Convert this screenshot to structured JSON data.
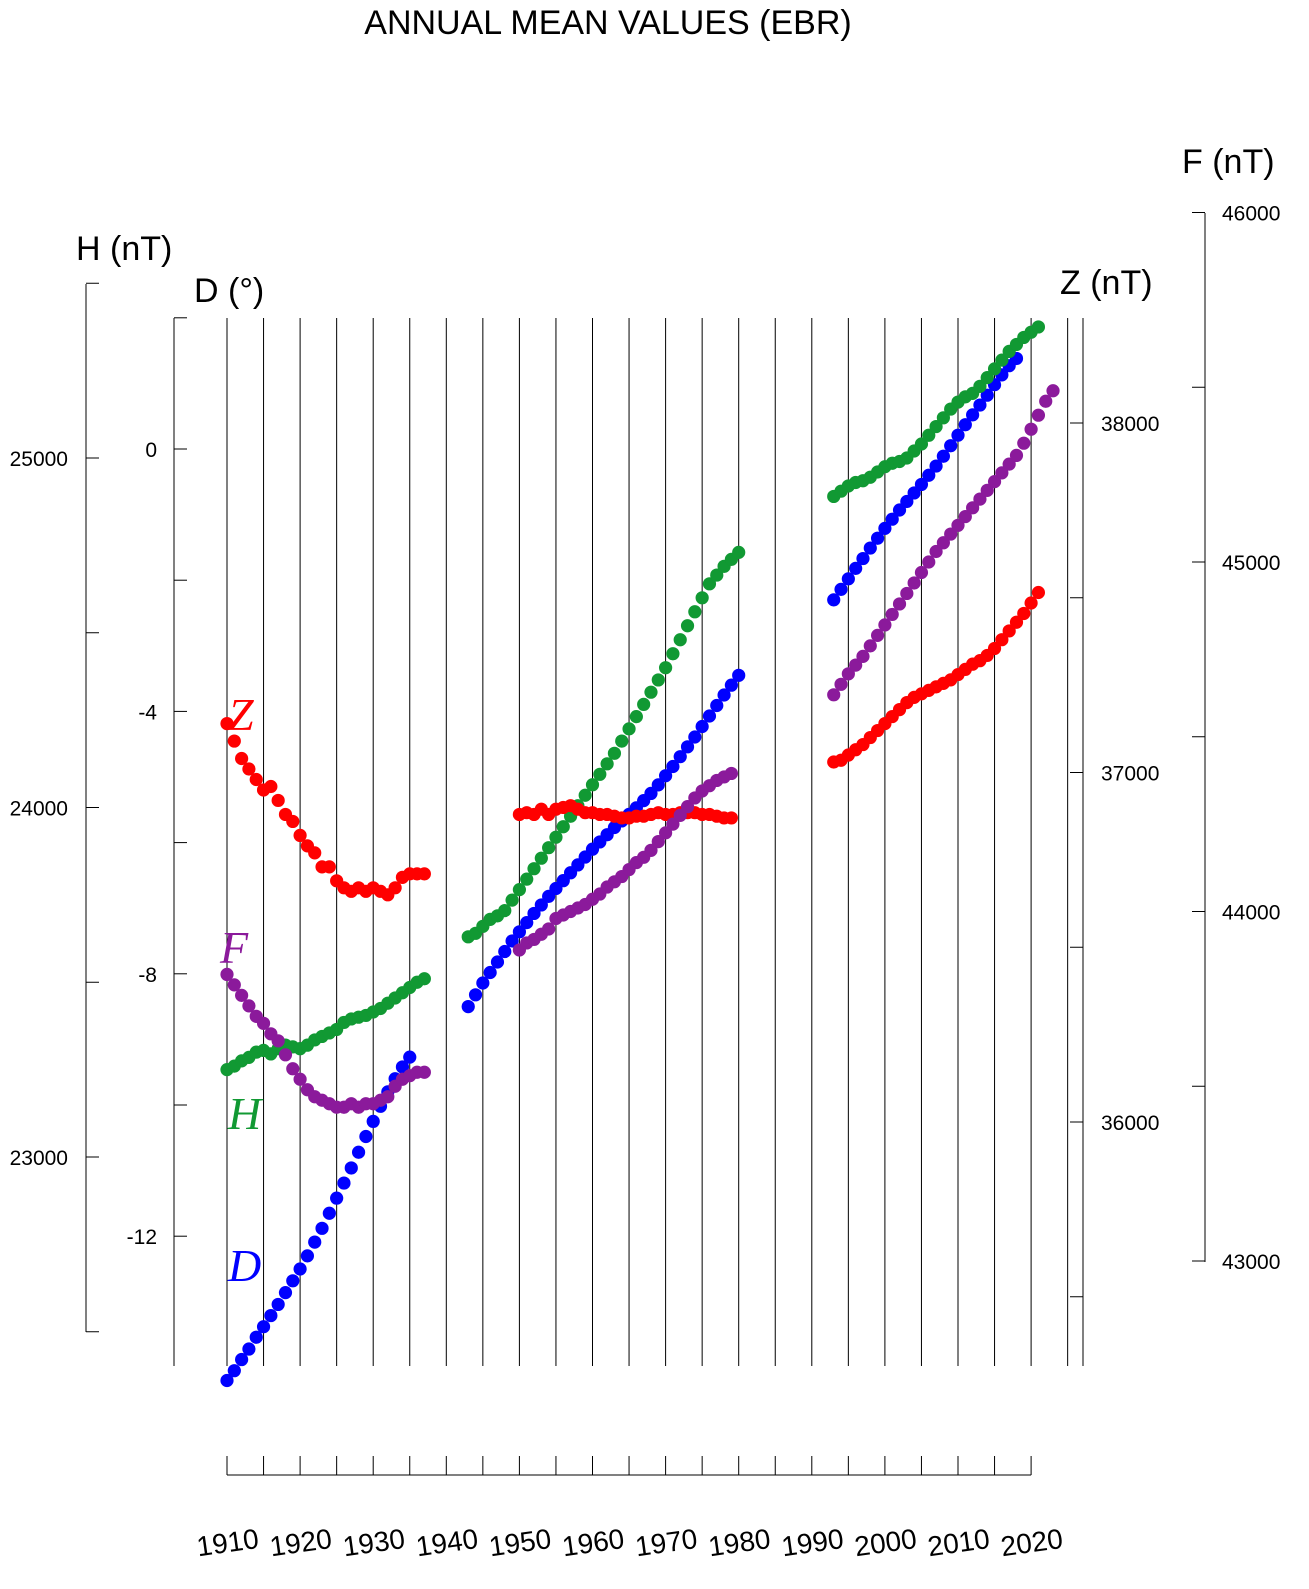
{
  "chart_data": {
    "type": "scatter",
    "title": "ANNUAL MEAN VALUES (EBR)",
    "colors": {
      "D": "#0000ff",
      "H": "#119933",
      "Z": "#ff0000",
      "F": "#8b1a9b"
    },
    "x": {
      "ticks": [
        1910,
        1920,
        1930,
        1940,
        1950,
        1960,
        1970,
        1980,
        1990,
        2000,
        2010,
        2020
      ],
      "range": [
        1910,
        2020
      ]
    },
    "axes": {
      "H": {
        "label": "H (nT)",
        "range": [
          22500,
          25500
        ],
        "major_ticks": [
          23000,
          24000,
          25000
        ],
        "minor_ticks": [
          22500,
          23500,
          24500,
          25500
        ],
        "side": "left-outer"
      },
      "D": {
        "label": "D (°)",
        "range": [
          -14.5,
          2
        ],
        "major_ticks": [
          -12,
          -8,
          -4,
          0
        ],
        "minor_ticks": [
          -14,
          -10,
          -6,
          -2,
          2
        ],
        "side": "left-inner"
      },
      "Z": {
        "label": "Z (nT)",
        "range": [
          35300,
          38300
        ],
        "major_ticks": [
          36000,
          37000,
          38000
        ],
        "minor_ticks": [
          35500,
          36500,
          37500
        ],
        "side": "right-inner"
      },
      "F": {
        "label": "F (nT)",
        "range": [
          43000,
          46000
        ],
        "major_ticks": [
          43000,
          44000,
          45000,
          46000
        ],
        "minor_ticks": [
          43500,
          44500,
          45500
        ],
        "side": "right-outer"
      }
    },
    "series": [
      {
        "name": "D",
        "axis": "D",
        "segments": [
          {
            "x_start": 1910,
            "values": [
              -14.2,
              -14.05,
              -13.88,
              -13.72,
              -13.54,
              -13.38,
              -13.21,
              -13.04,
              -12.86,
              -12.68,
              -12.5,
              -12.3,
              -12.09,
              -11.88,
              -11.65,
              -11.42,
              -11.19,
              -10.96,
              -10.72,
              -10.48,
              -10.25,
              -10.02,
              -9.8,
              -9.6,
              -9.42,
              -9.27
            ]
          },
          {
            "x_start": 1943,
            "values": [
              -8.5,
              -8.32,
              -8.14,
              -7.98,
              -7.82,
              -7.66,
              -7.5,
              -7.36,
              -7.22,
              -7.08,
              -6.95,
              -6.82,
              -6.7,
              -6.58,
              -6.46,
              -6.34,
              -6.22,
              -6.1,
              -5.99,
              -5.88,
              -5.77,
              -5.67,
              -5.57,
              -5.47,
              -5.36,
              -5.25,
              -5.12,
              -4.98,
              -4.84,
              -4.69,
              -4.54,
              -4.39,
              -4.23,
              -4.07,
              -3.91,
              -3.75,
              -3.6,
              -3.45
            ]
          },
          {
            "x_start": 1993,
            "values": [
              -2.3,
              -2.14,
              -1.98,
              -1.82,
              -1.67,
              -1.51,
              -1.36,
              -1.21,
              -1.07,
              -0.93,
              -0.8,
              -0.67,
              -0.54,
              -0.4,
              -0.26,
              -0.11,
              0.05,
              0.21,
              0.37,
              0.52,
              0.67,
              0.82,
              0.98,
              1.13,
              1.27,
              1.38
            ]
          }
        ]
      },
      {
        "name": "H",
        "axis": "H",
        "segments": [
          {
            "x_start": 1910,
            "values": [
              23250,
              23260,
              23275,
              23285,
              23300,
              23305,
              23295,
              23310,
              23320,
              23315,
              23310,
              23320,
              23335,
              23345,
              23355,
              23365,
              23385,
              23395,
              23400,
              23405,
              23415,
              23425,
              23440,
              23455,
              23470,
              23485,
              23500,
              23510
            ]
          },
          {
            "x_start": 1943,
            "values": [
              23630,
              23640,
              23660,
              23680,
              23690,
              23705,
              23735,
              23765,
              23795,
              23825,
              23855,
              23885,
              23915,
              23945,
              23975,
              24005,
              24035,
              24065,
              24095,
              24125,
              24155,
              24190,
              24225,
              24260,
              24295,
              24330,
              24365,
              24400,
              24440,
              24480,
              24520,
              24560,
              24600,
              24640,
              24665,
              24690,
              24710,
              24730
            ]
          },
          {
            "x_start": 1993,
            "values": [
              24890,
              24905,
              24920,
              24930,
              24935,
              24945,
              24960,
              24975,
              24985,
              24990,
              25000,
              25020,
              25040,
              25065,
              25090,
              25115,
              25140,
              25160,
              25175,
              25185,
              25205,
              25230,
              25255,
              25280,
              25305,
              25325,
              25345,
              25360,
              25375
            ]
          }
        ]
      },
      {
        "name": "Z",
        "axis": "Z",
        "segments": [
          {
            "x_start": 1910,
            "values": [
              37140,
              37090,
              37040,
              37010,
              36980,
              36950,
              36960,
              36920,
              36880,
              36860,
              36820,
              36790,
              36770,
              36730,
              36730,
              36690,
              36670,
              36660,
              36670,
              36660,
              36670,
              36660,
              36650,
              36670,
              36700,
              36710,
              36710,
              36710
            ]
          },
          {
            "x_start": 1950,
            "values": [
              36880,
              36885,
              36880,
              36895,
              36880,
              36895,
              36900,
              36905,
              36895,
              36885,
              36885,
              36880,
              36880,
              36875,
              36870,
              36870,
              36875,
              36875,
              36880,
              36885,
              36880,
              36880,
              36885,
              36885,
              36885,
              36880,
              36880,
              36875,
              36870,
              36870
            ]
          },
          {
            "x_start": 1993,
            "values": [
              37030,
              37035,
              37050,
              37065,
              37080,
              37100,
              37120,
              37140,
              37160,
              37180,
              37200,
              37215,
              37225,
              37235,
              37245,
              37255,
              37265,
              37280,
              37295,
              37310,
              37320,
              37335,
              37355,
              37380,
              37405,
              37430,
              37455,
              37485,
              37515
            ]
          }
        ]
      },
      {
        "name": "F",
        "axis": "F",
        "segments": [
          {
            "x_start": 1910,
            "values": [
              43820,
              43790,
              43760,
              43730,
              43700,
              43680,
              43650,
              43630,
              43590,
              43550,
              43520,
              43490,
              43470,
              43460,
              43450,
              43440,
              43440,
              43450,
              43440,
              43450,
              43450,
              43460,
              43470,
              43500,
              43520,
              43530,
              43540,
              43540
            ]
          },
          {
            "x_start": 1950,
            "values": [
              43890,
              43910,
              43920,
              43935,
              43950,
              43980,
              43990,
              44000,
              44010,
              44020,
              44035,
              44050,
              44070,
              44085,
              44100,
              44120,
              44140,
              44155,
              44175,
              44200,
              44225,
              44250,
              44275,
              44300,
              44325,
              44345,
              44360,
              44375,
              44385,
              44395
            ]
          },
          {
            "x_start": 1993,
            "values": [
              44620,
              44650,
              44680,
              44705,
              44730,
              44760,
              44790,
              44820,
              44850,
              44880,
              44910,
              44940,
              44970,
              45000,
              45030,
              45055,
              45080,
              45105,
              45130,
              45155,
              45180,
              45205,
              45230,
              45255,
              45280,
              45305,
              45340,
              45380,
              45420,
              45460,
              45490
            ]
          }
        ]
      }
    ]
  }
}
